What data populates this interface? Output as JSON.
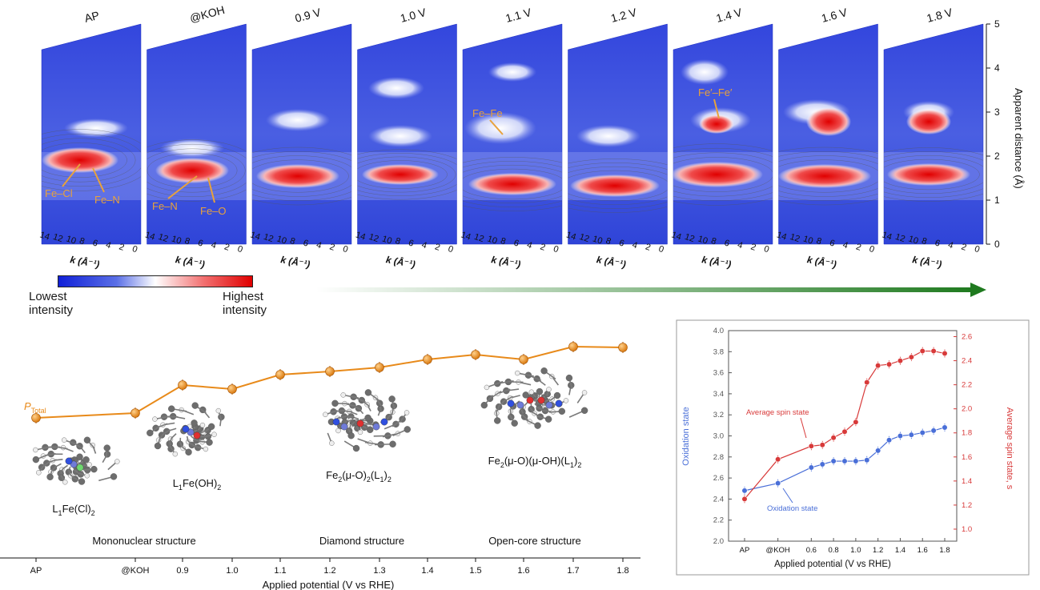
{
  "colorbar": {
    "low_label_1": "Lowest",
    "low_label_2": "intensity",
    "high_label_1": "Highest",
    "high_label_2": "intensity",
    "low_color": "#1020d8",
    "high_color": "#e00000"
  },
  "wt_panels": {
    "titles": [
      "AP",
      "@KOH",
      "0.9 V",
      "1.0 V",
      "1.1 V",
      "1.2 V",
      "1.4 V",
      "1.6 V",
      "1.8 V"
    ],
    "k_ticks": [
      "14",
      "12",
      "10",
      "8",
      "6",
      "4",
      "2",
      "0"
    ],
    "k_label": "k (Å⁻¹)",
    "r_ticks": [
      "0",
      "1",
      "2",
      "3",
      "4",
      "5"
    ],
    "r_label": "Apparent distance (Å)",
    "annotations": {
      "ap_fe_cl": "Fe–Cl",
      "ap_fe_n": "Fe–N",
      "koh_fe_n": "Fe–N",
      "koh_fe_o": "Fe–O",
      "v11_fe_fe": "Fe–Fe",
      "v14_fe_fe": "Fe′–Fe′"
    },
    "annotation_color": "#e8a23c",
    "arrow_color": "#2b7a2b"
  },
  "chart_data": [
    {
      "type": "line",
      "title": "",
      "xlabel": "Applied potential (V vs RHE)",
      "categories": [
        "AP",
        "@KOH",
        "0.9",
        "1.0",
        "1.1",
        "1.2",
        "1.3",
        "1.4",
        "1.5",
        "1.6",
        "1.7",
        "1.8"
      ],
      "series": [
        {
          "name": "P_Total",
          "values": [
            1.0,
            1.6,
            5.1,
            4.6,
            6.4,
            6.8,
            7.3,
            8.3,
            8.9,
            8.3,
            9.9,
            9.8
          ]
        }
      ],
      "ylim": [
        0,
        10
      ],
      "line_color": "#e88a1a",
      "ptotal_label": "P",
      "ptotal_sub": "Total",
      "structures": [
        "L₁Fe(Cl)₂",
        "L₁Fe(OH)₂",
        "Fe₂(μ-O)₂(L₁)₂",
        "Fe₂(μ-O)(μ-OH)(L₁)₂"
      ],
      "regions": [
        "Mononuclear structure",
        "Diamond structure",
        "Open-core structure"
      ]
    },
    {
      "type": "line",
      "xlabel": "Applied potential (V vs RHE)",
      "x_tick_labels": [
        "AP",
        "@KOH",
        "0.6",
        "0.8",
        "1.0",
        "1.2",
        "1.4",
        "1.6",
        "1.8"
      ],
      "left_axis": {
        "label": "Oxidation state",
        "ylim": [
          2.0,
          4.0
        ],
        "ticks": [
          "2.0",
          "2.2",
          "2.4",
          "2.6",
          "2.8",
          "3.0",
          "3.2",
          "3.4",
          "3.6",
          "3.8",
          "4.0"
        ],
        "color": "#4a6fd8"
      },
      "right_axis": {
        "label": "Average spin state, s",
        "ylim": [
          0.9,
          2.65
        ],
        "ticks": [
          "1.0",
          "1.2",
          "1.4",
          "1.6",
          "1.8",
          "2.0",
          "2.2",
          "2.4",
          "2.6"
        ],
        "color": "#d83a3a"
      },
      "series": [
        {
          "name": "Oxidation state",
          "axis": "left",
          "x": [
            0.0,
            0.3,
            0.6,
            0.7,
            0.8,
            0.9,
            1.0,
            1.1,
            1.2,
            1.3,
            1.4,
            1.5,
            1.6,
            1.7,
            1.8
          ],
          "values": [
            2.48,
            2.55,
            2.7,
            2.73,
            2.76,
            2.76,
            2.76,
            2.77,
            2.86,
            2.96,
            3.0,
            3.01,
            3.03,
            3.05,
            3.08
          ]
        },
        {
          "name": "Average spin state",
          "axis": "right",
          "x": [
            0.0,
            0.3,
            0.6,
            0.7,
            0.8,
            0.9,
            1.0,
            1.1,
            1.2,
            1.3,
            1.4,
            1.5,
            1.6,
            1.7,
            1.8
          ],
          "values": [
            1.25,
            1.58,
            1.69,
            1.7,
            1.76,
            1.81,
            1.89,
            2.22,
            2.36,
            2.37,
            2.4,
            2.43,
            2.48,
            2.48,
            2.46
          ]
        }
      ],
      "annotations": {
        "spin": "Average spin state",
        "ox": "Oxidation state"
      }
    }
  ]
}
